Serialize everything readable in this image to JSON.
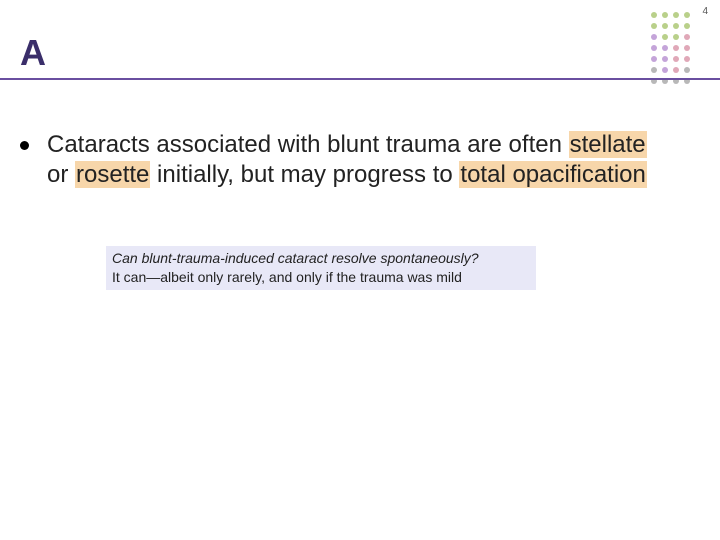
{
  "page_number": "4",
  "title": {
    "text": "A",
    "color": "#3a2e6a",
    "underline_color": "#6a4fa0"
  },
  "dot_grid": {
    "cols": 4,
    "rows": 7,
    "colors": [
      "#b9d08a",
      "#b9d08a",
      "#b9d08a",
      "#b9d08a",
      "#b9d08a",
      "#b9d08a",
      "#b9d08a",
      "#b9d08a",
      "#c4a4d9",
      "#b9d08a",
      "#b9d08a",
      "#e0a8b8",
      "#c4a4d9",
      "#c4a4d9",
      "#e0a8b8",
      "#e0a8b8",
      "#c4a4d9",
      "#c4a4d9",
      "#e0a8b8",
      "#e0a8b8",
      "#b8b8b8",
      "#c4a4d9",
      "#e0a8b8",
      "#b8b8b8",
      "#b8b8b8",
      "#b8b8b8",
      "#b8b8b8",
      "#b8b8b8"
    ]
  },
  "bullet": {
    "segments": [
      {
        "text": "Cataracts associated with blunt trauma",
        "hl": false
      },
      {
        "text": " are often ",
        "hl": false
      },
      {
        "text": "stellate",
        "hl": true
      },
      {
        "text": " or ",
        "hl": false
      },
      {
        "text": "rosette",
        "hl": true
      },
      {
        "text": " initially, but may progress to ",
        "hl": false
      },
      {
        "text": "total opacification",
        "hl": true,
        "trailing_space": true
      }
    ],
    "highlight_color": "#f7d6aa"
  },
  "subnote": {
    "line1": "Can blunt-trauma-induced cataract resolve spontaneously?",
    "line2": "It can—albeit only rarely, and only if the trauma was mild",
    "background": "#e8e8f7"
  }
}
